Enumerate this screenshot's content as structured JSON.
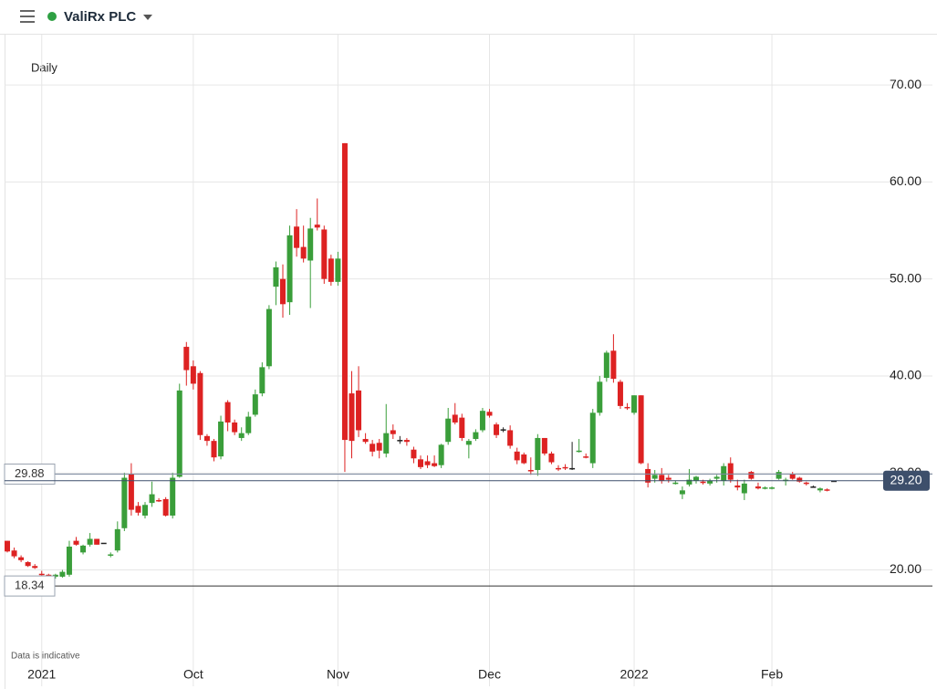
{
  "header": {
    "title": "ValiRx PLC"
  },
  "chart_data": {
    "type": "candlestick",
    "subtitle": "Daily",
    "note": "Data is indicative",
    "categories": [
      null,
      null,
      null,
      null,
      null,
      "2021",
      null,
      null,
      null,
      null,
      null,
      null,
      null,
      null,
      null,
      null,
      null,
      null,
      null,
      null,
      null,
      null,
      null,
      null,
      null,
      null,
      null,
      "Oct",
      null,
      null,
      null,
      null,
      null,
      null,
      null,
      null,
      null,
      null,
      null,
      null,
      null,
      null,
      null,
      null,
      null,
      null,
      null,
      null,
      "Nov",
      null,
      null,
      null,
      null,
      null,
      null,
      null,
      null,
      null,
      null,
      null,
      null,
      null,
      null,
      null,
      null,
      null,
      null,
      null,
      null,
      null,
      "Dec",
      null,
      null,
      null,
      null,
      null,
      null,
      null,
      null,
      null,
      null,
      null,
      null,
      null,
      null,
      null,
      null,
      null,
      null,
      null,
      null,
      "2022",
      null,
      null,
      null,
      null,
      null,
      null,
      null,
      null,
      null,
      null,
      null,
      null,
      null,
      null,
      null,
      null,
      null,
      null,
      null,
      "Feb",
      null,
      null,
      null,
      null,
      null,
      null,
      null,
      null,
      null
    ],
    "open": [
      23.0,
      22.0,
      21.3,
      20.8,
      20.4,
      19.6,
      19.5,
      19.3,
      19.3,
      19.5,
      23.0,
      21.8,
      22.6,
      23.2,
      22.8,
      21.5,
      22.0,
      24.3,
      29.9,
      26.6,
      25.6,
      26.9,
      27.2,
      27.3,
      25.6,
      29.6,
      43.0,
      41.0,
      40.3,
      33.8,
      33.3,
      31.7,
      37.3,
      35.2,
      33.6,
      34.1,
      36.0,
      38.2,
      41.0,
      49.2,
      50.0,
      47.6,
      55.4,
      53.3,
      51.9,
      55.6,
      55.1,
      52.1,
      49.7,
      64.0,
      38.2,
      38.5,
      33.5,
      33.0,
      33.1,
      32.0,
      34.4,
      33.4,
      33.4,
      32.4,
      31.4,
      31.2,
      31.0,
      30.8,
      33.2,
      36.0,
      35.7,
      32.9,
      33.5,
      34.4,
      36.3,
      35.0,
      34.5,
      34.4,
      32.2,
      31.9,
      30.3,
      30.3,
      33.6,
      32.0,
      30.5,
      30.6,
      30.5,
      32.2,
      31.7,
      31.0,
      36.2,
      39.8,
      42.6,
      39.4,
      36.8,
      36.2,
      38.0,
      30.4,
      29.4,
      29.8,
      29.5,
      28.9,
      27.8,
      28.8,
      29.2,
      29.1,
      28.9,
      29.4,
      29.2,
      31.0,
      28.7,
      27.9,
      30.1,
      28.6,
      28.4,
      28.4,
      29.4,
      29.2,
      29.9,
      29.5,
      29.0,
      28.6,
      28.2,
      28.3,
      29.2
    ],
    "high": [
      23.0,
      22.3,
      21.5,
      20.9,
      20.6,
      19.9,
      19.6,
      19.6,
      20.0,
      23.0,
      23.4,
      22.6,
      23.8,
      23.2,
      22.8,
      21.8,
      25.0,
      30.0,
      31.0,
      27.0,
      27.0,
      29.1,
      27.4,
      27.5,
      30.0,
      39.2,
      43.5,
      41.6,
      40.5,
      34.0,
      33.5,
      35.9,
      37.5,
      35.5,
      34.7,
      36.3,
      38.6,
      41.4,
      47.3,
      51.8,
      51.5,
      55.5,
      57.2,
      55.5,
      56.3,
      58.3,
      55.5,
      52.5,
      52.8,
      64.0,
      40.5,
      41.0,
      34.1,
      33.4,
      33.5,
      37.1,
      35.0,
      33.8,
      33.6,
      32.7,
      31.8,
      31.8,
      31.8,
      33.0,
      36.7,
      37.2,
      36.1,
      33.5,
      34.5,
      36.7,
      36.6,
      35.2,
      34.7,
      34.9,
      32.6,
      32.1,
      31.6,
      34.0,
      33.6,
      32.2,
      30.8,
      30.9,
      33.2,
      33.5,
      32.0,
      36.6,
      40.0,
      42.6,
      44.3,
      39.6,
      37.2,
      38.0,
      38.0,
      31.0,
      30.3,
      30.5,
      29.8,
      29.2,
      28.6,
      30.4,
      29.7,
      29.3,
      29.4,
      29.8,
      31.0,
      31.6,
      29.3,
      29.3,
      30.2,
      29.0,
      28.6,
      28.6,
      30.3,
      29.5,
      30.1,
      29.6,
      29.1,
      28.7,
      28.5,
      28.4,
      29.2
    ],
    "low": [
      21.8,
      21.2,
      20.8,
      20.3,
      20.1,
      19.4,
      19.1,
      19.1,
      19.2,
      19.3,
      22.5,
      21.6,
      22.4,
      22.6,
      22.8,
      21.3,
      21.8,
      24.0,
      25.6,
      25.6,
      25.3,
      26.5,
      27.0,
      25.5,
      25.3,
      29.5,
      39.0,
      38.6,
      33.4,
      32.8,
      31.2,
      31.4,
      34.3,
      33.9,
      33.3,
      33.9,
      35.8,
      37.9,
      40.7,
      47.3,
      46.0,
      46.3,
      52.3,
      51.7,
      47.0,
      55.0,
      49.5,
      49.3,
      49.3,
      30.1,
      31.5,
      33.7,
      33.0,
      31.7,
      31.5,
      31.6,
      33.5,
      33.0,
      32.8,
      31.0,
      30.4,
      30.5,
      30.6,
      30.5,
      32.9,
      35.0,
      33.3,
      31.5,
      33.3,
      34.2,
      35.7,
      33.6,
      34.2,
      32.5,
      30.9,
      30.9,
      29.8,
      29.7,
      31.8,
      30.9,
      30.2,
      30.3,
      30.3,
      32.1,
      31.5,
      30.5,
      35.9,
      39.4,
      39.3,
      36.6,
      36.5,
      36.0,
      30.9,
      28.5,
      29.0,
      28.9,
      29.0,
      28.8,
      27.3,
      28.6,
      28.9,
      28.8,
      28.7,
      29.0,
      28.7,
      29.0,
      28.2,
      27.2,
      29.3,
      28.3,
      28.3,
      28.3,
      29.3,
      28.7,
      29.3,
      29.0,
      28.7,
      28.5,
      28.0,
      28.1,
      29.1
    ],
    "close": [
      21.9,
      21.4,
      21.0,
      20.4,
      20.2,
      19.5,
      19.3,
      19.5,
      19.8,
      22.4,
      22.6,
      22.5,
      23.2,
      22.6,
      22.8,
      21.6,
      24.2,
      29.5,
      26.2,
      25.9,
      26.7,
      27.8,
      27.1,
      25.6,
      29.5,
      38.5,
      40.6,
      39.2,
      33.9,
      33.3,
      31.6,
      35.3,
      35.2,
      34.2,
      34.1,
      35.8,
      38.1,
      40.9,
      46.9,
      51.2,
      47.4,
      54.5,
      53.2,
      52.1,
      55.2,
      55.3,
      50.0,
      49.7,
      52.1,
      33.4,
      33.3,
      34.4,
      33.2,
      32.2,
      32.3,
      34.1,
      34.0,
      33.4,
      33.2,
      31.5,
      30.6,
      30.8,
      30.7,
      32.9,
      35.6,
      35.2,
      33.6,
      33.3,
      34.2,
      36.4,
      35.9,
      33.9,
      34.5,
      32.8,
      31.3,
      31.0,
      30.2,
      33.6,
      32.0,
      31.1,
      30.4,
      30.5,
      30.5,
      32.3,
      31.6,
      36.2,
      39.4,
      42.4,
      39.7,
      36.9,
      36.7,
      38.0,
      31.0,
      29.0,
      29.8,
      29.2,
      29.3,
      29.0,
      28.2,
      29.3,
      29.6,
      29.0,
      29.2,
      29.6,
      30.7,
      29.3,
      28.5,
      28.9,
      29.4,
      28.4,
      28.5,
      28.5,
      30.1,
      29.3,
      29.4,
      29.1,
      28.9,
      28.6,
      28.4,
      28.2,
      29.2
    ],
    "up_color": "#3a9e3a",
    "down_color": "#dd2222",
    "flat_color": "#222222",
    "ylim": [
      8,
      75
    ],
    "yticks": [
      {
        "value": 20,
        "label": "20.00"
      },
      {
        "value": 30,
        "label": "30.00"
      },
      {
        "value": 40,
        "label": "40.00"
      },
      {
        "value": 50,
        "label": "50.00"
      },
      {
        "value": 60,
        "label": "60.00"
      },
      {
        "value": 70,
        "label": "70.00"
      }
    ],
    "price_lines": [
      29.88,
      18.34
    ],
    "last_price": {
      "value": 29.2,
      "label": "29.20"
    },
    "grid": true
  }
}
